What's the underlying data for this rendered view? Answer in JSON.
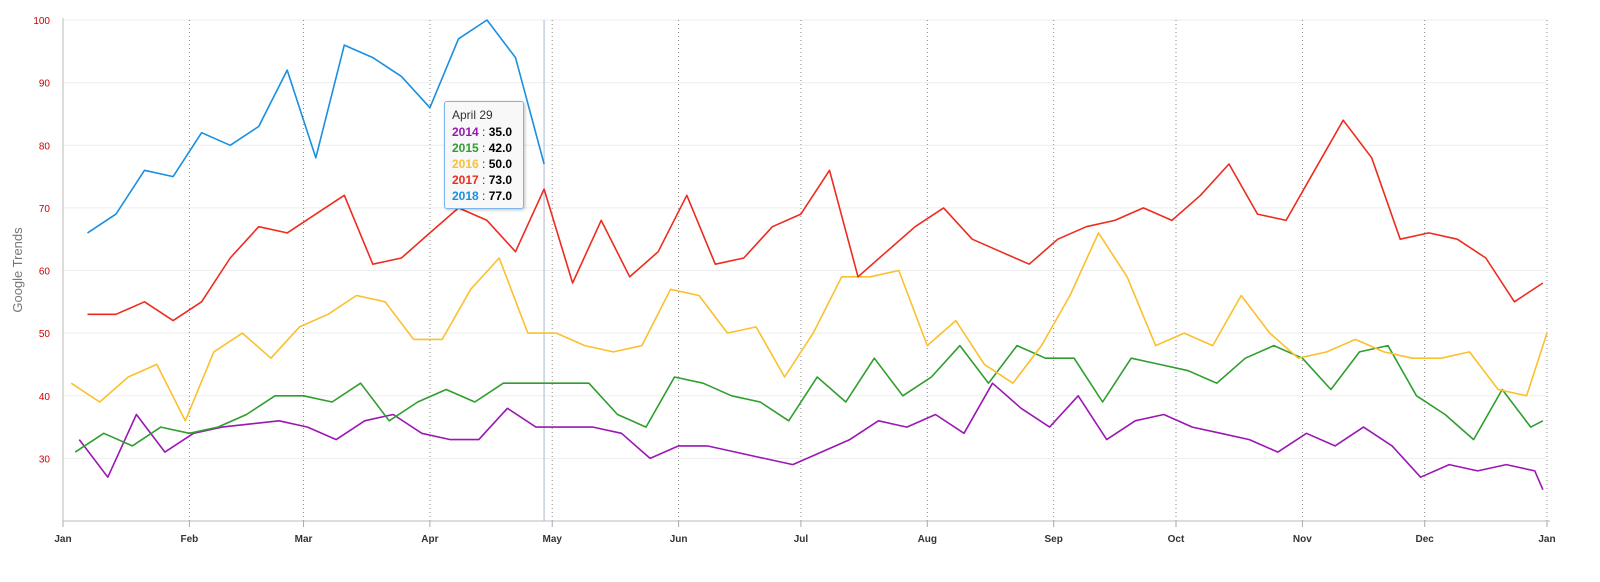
{
  "chart_data": {
    "type": "line",
    "ylabel": "Google Trends",
    "xlabel": "",
    "ylim": [
      20,
      100
    ],
    "yticks": [
      30,
      40,
      50,
      60,
      70,
      80,
      90,
      100
    ],
    "x_date_range": [
      "2018-01-01",
      "2018-12-31"
    ],
    "month_ticks": [
      {
        "label": "Jan",
        "date": "2018-01-01"
      },
      {
        "label": "Feb",
        "date": "2018-02-01"
      },
      {
        "label": "Mar",
        "date": "2018-03-01"
      },
      {
        "label": "Apr",
        "date": "2018-04-01"
      },
      {
        "label": "May",
        "date": "2018-05-01"
      },
      {
        "label": "Jun",
        "date": "2018-06-01"
      },
      {
        "label": "Jul",
        "date": "2018-07-01"
      },
      {
        "label": "Aug",
        "date": "2018-08-01"
      },
      {
        "label": "Sep",
        "date": "2018-09-01"
      },
      {
        "label": "Oct",
        "date": "2018-10-01"
      },
      {
        "label": "Nov",
        "date": "2018-11-01"
      },
      {
        "label": "Dec",
        "date": "2018-12-01"
      },
      {
        "label": "Jan",
        "date": "2018-12-31"
      }
    ],
    "crosshair_date": "2018-04-29",
    "series": [
      {
        "name": "2014",
        "color": "#9b17b3",
        "points": [
          [
            "2018-01-05",
            33
          ],
          [
            "2018-01-12",
            27
          ],
          [
            "2018-01-19",
            37
          ],
          [
            "2018-01-26",
            31
          ],
          [
            "2018-02-02",
            34
          ],
          [
            "2018-02-09",
            35
          ],
          [
            "2018-02-16",
            35.5
          ],
          [
            "2018-02-23",
            36
          ],
          [
            "2018-03-02",
            35
          ],
          [
            "2018-03-09",
            33
          ],
          [
            "2018-03-16",
            36
          ],
          [
            "2018-03-23",
            37
          ],
          [
            "2018-03-30",
            34
          ],
          [
            "2018-04-06",
            33
          ],
          [
            "2018-04-13",
            33
          ],
          [
            "2018-04-20",
            38
          ],
          [
            "2018-04-27",
            35
          ],
          [
            "2018-05-04",
            35
          ],
          [
            "2018-05-11",
            35
          ],
          [
            "2018-05-18",
            34
          ],
          [
            "2018-05-25",
            30
          ],
          [
            "2018-06-01",
            32
          ],
          [
            "2018-06-08",
            32
          ],
          [
            "2018-06-15",
            31
          ],
          [
            "2018-06-22",
            30
          ],
          [
            "2018-06-29",
            29
          ],
          [
            "2018-07-06",
            31
          ],
          [
            "2018-07-13",
            33
          ],
          [
            "2018-07-20",
            36
          ],
          [
            "2018-07-27",
            35
          ],
          [
            "2018-08-03",
            37
          ],
          [
            "2018-08-10",
            34
          ],
          [
            "2018-08-17",
            42
          ],
          [
            "2018-08-24",
            38
          ],
          [
            "2018-08-31",
            35
          ],
          [
            "2018-09-07",
            40
          ],
          [
            "2018-09-14",
            33
          ],
          [
            "2018-09-21",
            36
          ],
          [
            "2018-09-28",
            37
          ],
          [
            "2018-10-05",
            35
          ],
          [
            "2018-10-12",
            34
          ],
          [
            "2018-10-19",
            33
          ],
          [
            "2018-10-26",
            31
          ],
          [
            "2018-11-02",
            34
          ],
          [
            "2018-11-09",
            32
          ],
          [
            "2018-11-16",
            35
          ],
          [
            "2018-11-23",
            32
          ],
          [
            "2018-11-30",
            27
          ],
          [
            "2018-12-07",
            29
          ],
          [
            "2018-12-14",
            28
          ],
          [
            "2018-12-21",
            29
          ],
          [
            "2018-12-28",
            28
          ],
          [
            "2018-12-30",
            25
          ]
        ]
      },
      {
        "name": "2015",
        "color": "#2e9e2e",
        "points": [
          [
            "2018-01-04",
            31
          ],
          [
            "2018-01-11",
            34
          ],
          [
            "2018-01-18",
            32
          ],
          [
            "2018-01-25",
            35
          ],
          [
            "2018-02-01",
            34
          ],
          [
            "2018-02-08",
            35
          ],
          [
            "2018-02-15",
            37
          ],
          [
            "2018-02-22",
            40
          ],
          [
            "2018-03-01",
            40
          ],
          [
            "2018-03-08",
            39
          ],
          [
            "2018-03-15",
            42
          ],
          [
            "2018-03-22",
            36
          ],
          [
            "2018-03-29",
            39
          ],
          [
            "2018-04-05",
            41
          ],
          [
            "2018-04-12",
            39
          ],
          [
            "2018-04-19",
            42
          ],
          [
            "2018-04-26",
            42
          ],
          [
            "2018-05-03",
            42
          ],
          [
            "2018-05-10",
            42
          ],
          [
            "2018-05-17",
            37
          ],
          [
            "2018-05-24",
            35
          ],
          [
            "2018-05-31",
            43
          ],
          [
            "2018-06-07",
            42
          ],
          [
            "2018-06-14",
            40
          ],
          [
            "2018-06-21",
            39
          ],
          [
            "2018-06-28",
            36
          ],
          [
            "2018-07-05",
            43
          ],
          [
            "2018-07-12",
            39
          ],
          [
            "2018-07-19",
            46
          ],
          [
            "2018-07-26",
            40
          ],
          [
            "2018-08-02",
            43
          ],
          [
            "2018-08-09",
            48
          ],
          [
            "2018-08-16",
            42
          ],
          [
            "2018-08-23",
            48
          ],
          [
            "2018-08-30",
            46
          ],
          [
            "2018-09-06",
            46
          ],
          [
            "2018-09-13",
            39
          ],
          [
            "2018-09-20",
            46
          ],
          [
            "2018-09-27",
            45
          ],
          [
            "2018-10-04",
            44
          ],
          [
            "2018-10-11",
            42
          ],
          [
            "2018-10-18",
            46
          ],
          [
            "2018-10-25",
            48
          ],
          [
            "2018-11-01",
            46
          ],
          [
            "2018-11-08",
            41
          ],
          [
            "2018-11-15",
            47
          ],
          [
            "2018-11-22",
            48
          ],
          [
            "2018-11-29",
            40
          ],
          [
            "2018-12-06",
            37
          ],
          [
            "2018-12-13",
            33
          ],
          [
            "2018-12-20",
            41
          ],
          [
            "2018-12-27",
            35
          ],
          [
            "2018-12-30",
            36
          ]
        ]
      },
      {
        "name": "2016",
        "color": "#fbc02d",
        "points": [
          [
            "2018-01-03",
            42
          ],
          [
            "2018-01-10",
            39
          ],
          [
            "2018-01-17",
            43
          ],
          [
            "2018-01-24",
            45
          ],
          [
            "2018-01-31",
            36
          ],
          [
            "2018-02-07",
            47
          ],
          [
            "2018-02-14",
            50
          ],
          [
            "2018-02-21",
            46
          ],
          [
            "2018-02-28",
            51
          ],
          [
            "2018-03-07",
            53
          ],
          [
            "2018-03-14",
            56
          ],
          [
            "2018-03-21",
            55
          ],
          [
            "2018-03-28",
            49
          ],
          [
            "2018-04-04",
            49
          ],
          [
            "2018-04-11",
            57
          ],
          [
            "2018-04-18",
            62
          ],
          [
            "2018-04-25",
            50
          ],
          [
            "2018-05-02",
            50
          ],
          [
            "2018-05-09",
            48
          ],
          [
            "2018-05-16",
            47
          ],
          [
            "2018-05-23",
            48
          ],
          [
            "2018-05-30",
            57
          ],
          [
            "2018-06-06",
            56
          ],
          [
            "2018-06-13",
            50
          ],
          [
            "2018-06-20",
            51
          ],
          [
            "2018-06-27",
            43
          ],
          [
            "2018-07-04",
            50
          ],
          [
            "2018-07-11",
            59
          ],
          [
            "2018-07-18",
            59
          ],
          [
            "2018-07-25",
            60
          ],
          [
            "2018-08-01",
            48
          ],
          [
            "2018-08-08",
            52
          ],
          [
            "2018-08-15",
            45
          ],
          [
            "2018-08-22",
            42
          ],
          [
            "2018-08-29",
            48
          ],
          [
            "2018-09-05",
            56
          ],
          [
            "2018-09-12",
            66
          ],
          [
            "2018-09-19",
            59
          ],
          [
            "2018-09-26",
            48
          ],
          [
            "2018-10-03",
            50
          ],
          [
            "2018-10-10",
            48
          ],
          [
            "2018-10-17",
            56
          ],
          [
            "2018-10-24",
            50
          ],
          [
            "2018-10-31",
            46
          ],
          [
            "2018-11-07",
            47
          ],
          [
            "2018-11-14",
            49
          ],
          [
            "2018-11-21",
            47
          ],
          [
            "2018-11-28",
            46
          ],
          [
            "2018-12-05",
            46
          ],
          [
            "2018-12-12",
            47
          ],
          [
            "2018-12-19",
            41
          ],
          [
            "2018-12-26",
            40
          ],
          [
            "2018-12-31",
            50
          ]
        ]
      },
      {
        "name": "2017",
        "color": "#ee2b1f",
        "points": [
          [
            "2018-01-07",
            53
          ],
          [
            "2018-01-14",
            53
          ],
          [
            "2018-01-21",
            55
          ],
          [
            "2018-01-28",
            52
          ],
          [
            "2018-02-04",
            55
          ],
          [
            "2018-02-11",
            62
          ],
          [
            "2018-02-18",
            67
          ],
          [
            "2018-02-25",
            66
          ],
          [
            "2018-03-04",
            69
          ],
          [
            "2018-03-11",
            72
          ],
          [
            "2018-03-18",
            61
          ],
          [
            "2018-03-25",
            62
          ],
          [
            "2018-04-01",
            66
          ],
          [
            "2018-04-08",
            70
          ],
          [
            "2018-04-15",
            68
          ],
          [
            "2018-04-22",
            63
          ],
          [
            "2018-04-29",
            73
          ],
          [
            "2018-05-06",
            58
          ],
          [
            "2018-05-13",
            68
          ],
          [
            "2018-05-20",
            59
          ],
          [
            "2018-05-27",
            63
          ],
          [
            "2018-06-03",
            72
          ],
          [
            "2018-06-10",
            61
          ],
          [
            "2018-06-17",
            62
          ],
          [
            "2018-06-24",
            67
          ],
          [
            "2018-07-01",
            69
          ],
          [
            "2018-07-08",
            76
          ],
          [
            "2018-07-15",
            59
          ],
          [
            "2018-07-22",
            63
          ],
          [
            "2018-07-29",
            67
          ],
          [
            "2018-08-05",
            70
          ],
          [
            "2018-08-12",
            65
          ],
          [
            "2018-08-19",
            63
          ],
          [
            "2018-08-26",
            61
          ],
          [
            "2018-09-02",
            65
          ],
          [
            "2018-09-09",
            67
          ],
          [
            "2018-09-16",
            68
          ],
          [
            "2018-09-23",
            70
          ],
          [
            "2018-09-30",
            68
          ],
          [
            "2018-10-07",
            72
          ],
          [
            "2018-10-14",
            77
          ],
          [
            "2018-10-21",
            69
          ],
          [
            "2018-10-28",
            68
          ],
          [
            "2018-11-04",
            76
          ],
          [
            "2018-11-11",
            84
          ],
          [
            "2018-11-18",
            78
          ],
          [
            "2018-11-25",
            65
          ],
          [
            "2018-12-02",
            66
          ],
          [
            "2018-12-09",
            65
          ],
          [
            "2018-12-16",
            62
          ],
          [
            "2018-12-23",
            55
          ],
          [
            "2018-12-30",
            58
          ]
        ]
      },
      {
        "name": "2018",
        "color": "#1a8fe0",
        "points": [
          [
            "2018-01-07",
            66
          ],
          [
            "2018-01-14",
            69
          ],
          [
            "2018-01-21",
            76
          ],
          [
            "2018-01-28",
            75
          ],
          [
            "2018-02-04",
            82
          ],
          [
            "2018-02-11",
            80
          ],
          [
            "2018-02-18",
            83
          ],
          [
            "2018-02-25",
            92
          ],
          [
            "2018-03-04",
            78
          ],
          [
            "2018-03-11",
            96
          ],
          [
            "2018-03-18",
            94
          ],
          [
            "2018-03-25",
            91
          ],
          [
            "2018-04-01",
            86
          ],
          [
            "2018-04-08",
            97
          ],
          [
            "2018-04-15",
            100
          ],
          [
            "2018-04-22",
            94
          ],
          [
            "2018-04-29",
            77
          ]
        ]
      }
    ]
  },
  "tooltip": {
    "title": "April 29",
    "separator": ":",
    "rows": [
      {
        "year": "2014",
        "value": "35.0",
        "color": "#9b17b3"
      },
      {
        "year": "2015",
        "value": "42.0",
        "color": "#2e9e2e"
      },
      {
        "year": "2016",
        "value": "50.0",
        "color": "#fbc02d"
      },
      {
        "year": "2017",
        "value": "73.0",
        "color": "#ee2b1f"
      },
      {
        "year": "2018",
        "value": "77.0",
        "color": "#1a8fe0"
      }
    ]
  }
}
